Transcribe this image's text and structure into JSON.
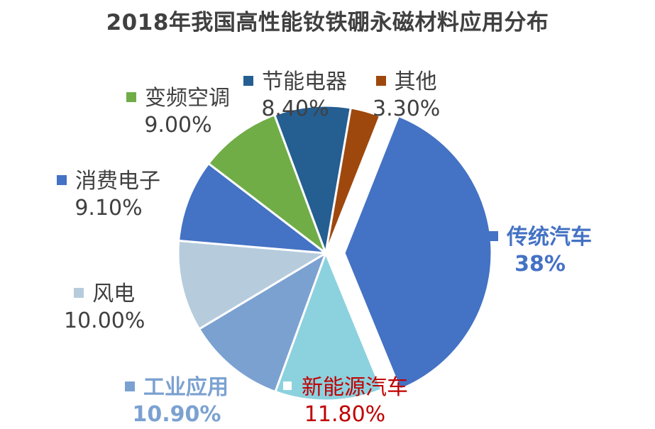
{
  "chart_data": {
    "type": "pie",
    "title": "2018年我国高性能钕铁硼永磁材料应用分布",
    "slices": [
      {
        "name": "传统汽车",
        "value": 38,
        "label": "38%",
        "color": "#4472C4",
        "exploded": true,
        "label_color": "#4472C4",
        "label_bold": true
      },
      {
        "name": "新能源汽车",
        "value": 11.8,
        "label": "11.80%",
        "color": "#8CD1DE",
        "label_color": "#C00000",
        "label_bold": false
      },
      {
        "name": "工业应用",
        "value": 10.9,
        "label": "10.90%",
        "color": "#7BA1D1",
        "label_color": "#7BA1D1",
        "label_bold": true
      },
      {
        "name": "风电",
        "value": 10.0,
        "label": "10.00%",
        "color": "#B6CCDC",
        "label_color": "#404040",
        "label_bold": false
      },
      {
        "name": "消费电子",
        "value": 9.1,
        "label": "9.10%",
        "color": "#4472C4",
        "label_color": "#404040",
        "label_bold": false
      },
      {
        "name": "变频空调",
        "value": 9.0,
        "label": "9.00%",
        "color": "#70AD47",
        "label_color": "#404040",
        "label_bold": false
      },
      {
        "name": "节能电器",
        "value": 8.4,
        "label": "8.40%",
        "color": "#255E91",
        "label_color": "#404040",
        "label_bold": false
      },
      {
        "name": "其他",
        "value": 3.3,
        "label": "3.30%",
        "color": "#9E480E",
        "label_color": "#404040",
        "label_bold": false
      }
    ]
  }
}
